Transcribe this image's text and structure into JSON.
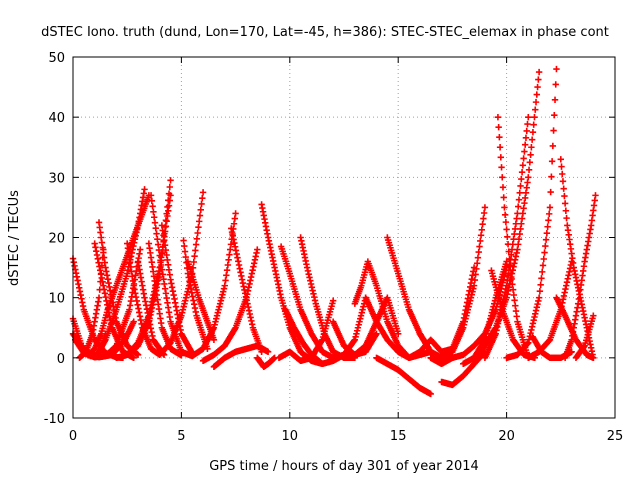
{
  "chart_data": {
    "type": "scatter",
    "title": "dSTEC Iono. truth (dund, Lon=170, Lat=-45, h=386): STEC-STEC_elemax in phase cont",
    "xlabel": "GPS time / hours of day 301 of year 2014",
    "ylabel": "dSTEC  / TECUs",
    "xlim": [
      0,
      25
    ],
    "ylim": [
      -10,
      50
    ],
    "x_ticks": [
      0,
      5,
      10,
      15,
      20,
      25
    ],
    "y_ticks": [
      -10,
      0,
      10,
      20,
      30,
      40,
      50
    ],
    "x_tick_labels": [
      "0",
      "5",
      "10",
      "15",
      "20",
      "25"
    ],
    "y_tick_labels": [
      "-10",
      "0",
      "10",
      "20",
      "30",
      "40",
      "50"
    ],
    "grid": true,
    "marker": "plus",
    "color": "#ff0000",
    "series": [
      {
        "x": [
          0.0,
          0.5,
          1.0,
          1.5,
          2.0,
          2.3
        ],
        "y": [
          16.5,
          8,
          3,
          0.8,
          0.1,
          0
        ]
      },
      {
        "x": [
          0.0,
          0.4,
          0.8,
          1.2,
          1.5
        ],
        "y": [
          6.5,
          2,
          0.3,
          0.5,
          4
        ]
      },
      {
        "x": [
          0.0,
          0.6,
          1.2,
          1.8,
          2.4,
          2.8
        ],
        "y": [
          4,
          0.8,
          0.1,
          0.5,
          3,
          6
        ]
      },
      {
        "x": [
          0.1,
          0.5,
          1.0,
          1.5,
          2.0,
          2.6,
          3.1
        ],
        "y": [
          3,
          0.8,
          0.1,
          0.3,
          2,
          8,
          18
        ]
      },
      {
        "x": [
          0.3,
          0.6,
          0.9,
          1.2,
          1.4
        ],
        "y": [
          0,
          1,
          4,
          10,
          18
        ]
      },
      {
        "x": [
          0.7,
          1.0,
          1.3,
          1.6,
          2.0,
          2.5,
          3.0,
          3.5
        ],
        "y": [
          0.4,
          1.5,
          4,
          8,
          12,
          17,
          22,
          27
        ]
      },
      {
        "x": [
          1.0,
          1.2,
          1.5,
          2.0,
          2.5,
          3.0,
          3.3
        ],
        "y": [
          0.1,
          1,
          3,
          8,
          14,
          22,
          28
        ]
      },
      {
        "x": [
          1.2,
          1.5,
          2.0,
          2.5,
          3.0
        ],
        "y": [
          22.5,
          15,
          6,
          2,
          0.5
        ]
      },
      {
        "x": [
          1.0,
          1.4,
          1.8,
          2.3,
          2.8
        ],
        "y": [
          19,
          12,
          5,
          1,
          0
        ]
      },
      {
        "x": [
          2.0,
          2.5,
          3.0,
          3.5,
          4.0,
          4.5
        ],
        "y": [
          0,
          0.5,
          2.5,
          7,
          15,
          27
        ]
      },
      {
        "x": [
          2.5,
          3.0,
          3.5,
          4.0,
          4.5
        ],
        "y": [
          0.5,
          2,
          6,
          14,
          29.5
        ]
      },
      {
        "x": [
          2.5,
          2.8,
          3.2,
          3.6,
          4.0
        ],
        "y": [
          19,
          12,
          5,
          1.5,
          0.5
        ]
      },
      {
        "x": [
          3.0,
          3.3,
          3.7,
          4.2
        ],
        "y": [
          16,
          10,
          3,
          0.5
        ]
      },
      {
        "x": [
          3.5,
          3.8,
          4.1,
          4.5,
          5.0
        ],
        "y": [
          19,
          12,
          5,
          1.5,
          0.4
        ]
      },
      {
        "x": [
          3.6,
          4.0,
          4.5,
          5.0
        ],
        "y": [
          27,
          17,
          6,
          1
        ]
      },
      {
        "x": [
          4.1,
          4.5,
          5.0,
          5.5
        ],
        "y": [
          22,
          13,
          4,
          0.8
        ]
      },
      {
        "x": [
          4.0,
          4.5,
          5.0,
          5.5,
          6.0
        ],
        "y": [
          0.5,
          2.5,
          7,
          14,
          27.5
        ]
      },
      {
        "x": [
          5.1,
          5.3,
          5.7,
          6.2
        ],
        "y": [
          19.5,
          14,
          7,
          1.5
        ]
      },
      {
        "x": [
          5.0,
          5.5,
          6.0,
          6.5,
          7.0,
          7.5
        ],
        "y": [
          1,
          0.3,
          1.5,
          5,
          12,
          24
        ]
      },
      {
        "x": [
          5.3,
          5.8,
          6.5
        ],
        "y": [
          16,
          10,
          3
        ]
      },
      {
        "x": [
          6.0,
          6.5,
          7.0,
          7.5,
          8.0,
          8.5
        ],
        "y": [
          -0.5,
          0.5,
          2,
          5,
          10,
          18
        ]
      },
      {
        "x": [
          6.5,
          7.0,
          7.5,
          8.0,
          8.5,
          9.0
        ],
        "y": [
          -1.5,
          0,
          1,
          1.5,
          2,
          1
        ]
      },
      {
        "x": [
          7.3,
          7.8,
          8.3,
          8.7
        ],
        "y": [
          21.5,
          13,
          5,
          1
        ]
      },
      {
        "x": [
          8.7,
          9.0,
          9.3,
          9.6,
          10.0,
          10.5,
          11.0
        ],
        "y": [
          25.5,
          20,
          15,
          10,
          5,
          1,
          -0.5
        ]
      },
      {
        "x": [
          8.5,
          8.8,
          9.0,
          9.3
        ],
        "y": [
          0,
          -1.5,
          -1,
          0
        ]
      },
      {
        "x": [
          9.5,
          10.0,
          10.5,
          11.0,
          11.5,
          12.0
        ],
        "y": [
          0,
          1,
          -0.5,
          0,
          3,
          9.5
        ]
      },
      {
        "x": [
          9.6,
          10.0,
          10.5,
          11.0,
          11.5,
          12.0,
          12.5
        ],
        "y": [
          18.5,
          14,
          8,
          4,
          1,
          0,
          0.5
        ]
      },
      {
        "x": [
          9.8,
          10.2,
          10.6,
          11.0,
          11.5
        ],
        "y": [
          8,
          5,
          2.5,
          0.5,
          -1
        ]
      },
      {
        "x": [
          10.5,
          10.8,
          11.2,
          11.6,
          12.0,
          12.5,
          13.0
        ],
        "y": [
          20,
          15,
          9,
          4,
          1,
          0,
          0
        ]
      },
      {
        "x": [
          11.0,
          11.5,
          12.0,
          12.5,
          13.0,
          13.5
        ],
        "y": [
          -0.5,
          -1,
          -0.5,
          0.5,
          3,
          10
        ]
      },
      {
        "x": [
          12.0,
          12.5,
          13.0,
          13.5,
          14.0
        ],
        "y": [
          6,
          2,
          0.5,
          1,
          4
        ]
      },
      {
        "x": [
          12.5,
          13.0,
          13.5,
          14.0,
          14.5,
          15.0
        ],
        "y": [
          0,
          0.5,
          2,
          6,
          10,
          4
        ]
      },
      {
        "x": [
          13.0,
          13.3,
          13.6,
          14.0,
          14.5,
          15.0,
          15.5
        ],
        "y": [
          9,
          12,
          16,
          12,
          6,
          2,
          0
        ]
      },
      {
        "x": [
          13.5,
          14.0,
          14.5,
          15.0,
          15.5,
          16.0,
          16.5
        ],
        "y": [
          10,
          6,
          3,
          1,
          0,
          0.5,
          1
        ]
      },
      {
        "x": [
          14.0,
          14.5,
          15.0,
          15.5,
          16.0,
          16.5
        ],
        "y": [
          0,
          -1,
          -2,
          -3.5,
          -5,
          -6
        ]
      },
      {
        "x": [
          14.5,
          15.0,
          15.5,
          16.0,
          16.5,
          17.0
        ],
        "y": [
          20,
          14,
          8,
          4,
          1,
          0
        ]
      },
      {
        "x": [
          15.5,
          16.0,
          16.5,
          17.0,
          17.5,
          18.0,
          18.5
        ],
        "y": [
          0,
          1,
          3,
          1,
          1.5,
          6,
          15
        ]
      },
      {
        "x": [
          16.0,
          16.5,
          17.0,
          17.5,
          18.0,
          18.5,
          19.0
        ],
        "y": [
          4,
          1,
          0,
          1,
          5,
          12,
          25
        ]
      },
      {
        "x": [
          17.0,
          17.5,
          18.0,
          18.5,
          19.0
        ],
        "y": [
          -4,
          -4.5,
          -3,
          -1,
          1
        ]
      },
      {
        "x": [
          16.5,
          17.0,
          17.5,
          18.0,
          18.5,
          19.0,
          19.5,
          20.0
        ],
        "y": [
          0,
          -1,
          0,
          0.5,
          2,
          4,
          8,
          15
        ]
      },
      {
        "x": [
          18.5,
          19.0,
          19.5,
          20.0
        ],
        "y": [
          0,
          3,
          10,
          16
        ]
      },
      {
        "x": [
          18.0,
          18.5,
          19.0,
          19.5,
          20.0,
          20.5,
          21.0,
          21.5
        ],
        "y": [
          -1,
          0,
          2,
          5,
          10,
          18,
          30,
          47.5
        ]
      },
      {
        "x": [
          19.0,
          19.5,
          20.0,
          20.5,
          21.0
        ],
        "y": [
          0,
          4,
          12,
          24,
          40
        ]
      },
      {
        "x": [
          19.6,
          19.9,
          20.2,
          20.5,
          21.0
        ],
        "y": [
          40,
          25,
          14,
          6,
          0
        ]
      },
      {
        "x": [
          19.3,
          19.8,
          20.3,
          20.8,
          21.3
        ],
        "y": [
          14.5,
          8,
          3,
          0.5,
          0
        ]
      },
      {
        "x": [
          20.0,
          20.5,
          21.0,
          21.5,
          22.0,
          22.3
        ],
        "y": [
          0,
          0.5,
          2.5,
          10,
          25,
          48
        ]
      },
      {
        "x": [
          21.0,
          21.5,
          22.0,
          22.5,
          23.0
        ],
        "y": [
          0,
          1,
          3,
          8,
          16
        ]
      },
      {
        "x": [
          21.2,
          21.6,
          22.0,
          22.5,
          23.0
        ],
        "y": [
          3.5,
          1,
          0,
          0,
          1
        ]
      },
      {
        "x": [
          22.5,
          22.8,
          23.1,
          23.4,
          23.7,
          24.0
        ],
        "y": [
          33,
          22,
          15,
          10,
          5,
          0
        ]
      },
      {
        "x": [
          22.3,
          22.7,
          23.2,
          23.7,
          24.0
        ],
        "y": [
          10,
          7,
          3,
          0.5,
          0
        ]
      },
      {
        "x": [
          22.7,
          23.0,
          23.3,
          23.6,
          23.9,
          24.1
        ],
        "y": [
          0,
          3,
          9,
          16,
          22,
          27
        ]
      },
      {
        "x": [
          23.2,
          23.6,
          24.0
        ],
        "y": [
          0,
          2,
          7
        ]
      }
    ]
  }
}
